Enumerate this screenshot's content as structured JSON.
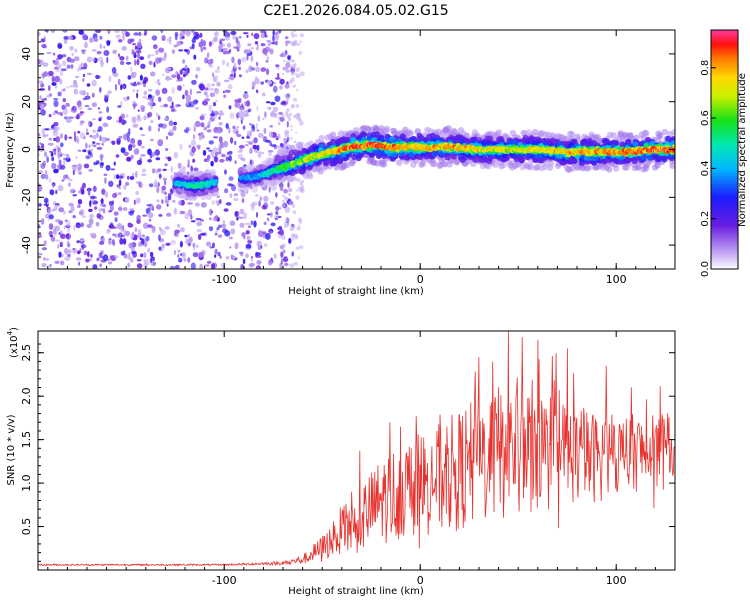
{
  "figure_title": "C2E1.2026.084.05.02.G15",
  "colors": {
    "snr_line": "#e8322e",
    "axis": "#000000"
  },
  "chart_data": [
    {
      "type": "heatmap",
      "title": "C2E1.2026.084.05.02.G15",
      "xlabel": "Height of straight line (km)",
      "ylabel": "Frequency (Hz)",
      "xlim": [
        -195,
        130
      ],
      "ylim": [
        -50,
        50
      ],
      "x_ticks": [
        -100,
        0,
        100
      ],
      "x_tick_labels": [
        "-100",
        "0",
        "100"
      ],
      "y_ticks": [
        -40,
        -20,
        0,
        20,
        40
      ],
      "y_tick_labels": [
        "-40",
        "-20",
        "0",
        "20",
        "40"
      ],
      "colorbar": {
        "label": "Normalized spectral amplitude",
        "range": [
          0,
          0.95
        ],
        "ticks": [
          0,
          0.2,
          0.4,
          0.6,
          0.8
        ],
        "tick_labels": [
          "0.0",
          "0.2",
          "0.4",
          "0.6",
          "0.8"
        ]
      },
      "noise_region_x": [
        -195,
        -68
      ],
      "signal_ridge": {
        "x": [
          -125,
          -118,
          -112,
          -106,
          -90,
          -82,
          -75,
          -65,
          -55,
          -45,
          -35,
          -25,
          -15,
          0,
          15,
          30,
          45,
          60,
          75,
          90,
          105,
          120,
          130
        ],
        "freq_hz": [
          -14,
          -15,
          -15,
          -14,
          -12,
          -11,
          -9,
          -6,
          -3,
          -1,
          1,
          2,
          1,
          1,
          1,
          0,
          0,
          0,
          -1,
          -1,
          -1,
          0,
          0
        ],
        "amplitude": [
          0.4,
          0.45,
          0.5,
          0.45,
          0.35,
          0.4,
          0.5,
          0.6,
          0.7,
          0.75,
          0.85,
          0.85,
          0.8,
          0.75,
          0.8,
          0.7,
          0.7,
          0.7,
          0.75,
          0.8,
          0.8,
          0.85,
          0.8
        ]
      }
    },
    {
      "type": "line",
      "xlabel": "Height of straight line (km)",
      "ylabel": "SNR (10 * v/v)",
      "y_scale_label": "(x10",
      "y_scale_exponent": "4",
      "y_scale_suffix": ")",
      "xlim": [
        -195,
        130
      ],
      "ylim": [
        0,
        2.75
      ],
      "x_ticks": [
        -100,
        0,
        100
      ],
      "x_tick_labels": [
        "-100",
        "0",
        "100"
      ],
      "y_ticks": [
        0.5,
        1.0,
        1.5,
        2.0,
        2.5
      ],
      "y_tick_labels": [
        "0.5",
        "1.0",
        "1.5",
        "2.0",
        "2.5"
      ],
      "series": [
        {
          "name": "SNR",
          "x": [
            -195,
            -150,
            -100,
            -70,
            -60,
            -50,
            -45,
            -40,
            -35,
            -30,
            -25,
            -20,
            -15,
            -10,
            -5,
            0,
            10,
            20,
            30,
            40,
            48,
            55,
            65,
            75,
            85,
            95,
            105,
            115,
            125,
            130
          ],
          "y_mean": [
            0.06,
            0.06,
            0.06,
            0.08,
            0.12,
            0.25,
            0.35,
            0.45,
            0.5,
            0.6,
            0.7,
            0.8,
            0.85,
            0.9,
            0.95,
            1.0,
            1.05,
            1.15,
            1.25,
            1.35,
            1.4,
            1.4,
            1.35,
            1.35,
            1.3,
            1.3,
            1.35,
            1.35,
            1.35,
            1.4
          ],
          "y_spread": [
            0.01,
            0.01,
            0.01,
            0.02,
            0.05,
            0.15,
            0.2,
            0.3,
            0.35,
            0.4,
            0.45,
            0.5,
            0.55,
            0.55,
            0.55,
            0.6,
            0.65,
            0.7,
            0.75,
            0.8,
            0.85,
            0.75,
            0.7,
            0.6,
            0.55,
            0.5,
            0.45,
            0.45,
            0.45,
            0.45
          ],
          "peaks": [
            [
              45,
              2.75
            ],
            [
              52,
              2.68
            ],
            [
              60,
              2.65
            ],
            [
              75,
              2.55
            ],
            [
              30,
              2.45
            ],
            [
              95,
              2.35
            ],
            [
              -10,
              1.65
            ],
            [
              -35,
              0.9
            ]
          ]
        }
      ]
    }
  ]
}
